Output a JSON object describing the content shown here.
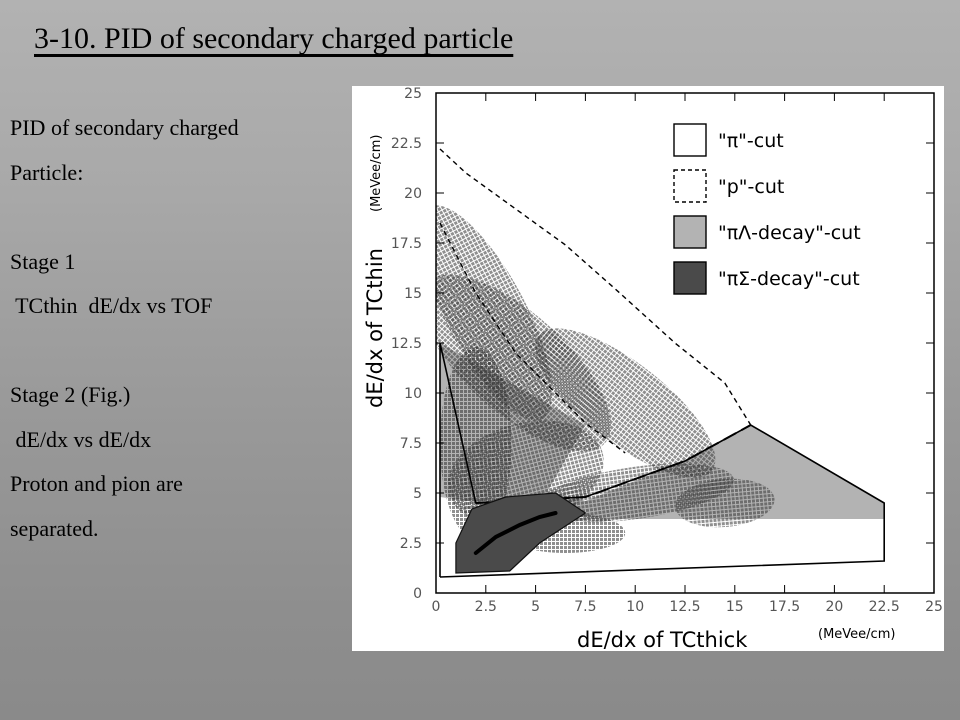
{
  "slide": {
    "title": "3-10.  PID of secondary charged particle",
    "lines": [
      "PID of secondary charged",
      "Particle:",
      "",
      "Stage 1",
      " TCthin  dE/dx vs TOF",
      "",
      "Stage 2 (Fig.)",
      " dE/dx vs dE/dx",
      "Proton and pion are",
      "separated."
    ]
  },
  "chart_data": {
    "type": "scatter",
    "xlabel": "dE/dx of TCthick",
    "ylabel": "dE/dx of TCthin",
    "x_unit": "(MeVee/cm)",
    "y_unit": "(MeVee/cm)",
    "xlim": [
      0,
      25
    ],
    "ylim": [
      0,
      25
    ],
    "x_ticks": [
      "0",
      "2.5",
      "5",
      "7.5",
      "10",
      "12.5",
      "15",
      "17.5",
      "20",
      "22.5",
      "25"
    ],
    "y_ticks": [
      "0",
      "2.5",
      "5",
      "7.5",
      "10",
      "12.5",
      "15",
      "17.5",
      "20",
      "22.5",
      "25"
    ],
    "legend": [
      {
        "label": "\"π\"-cut",
        "style": "solid-outline"
      },
      {
        "label": "\"p\"-cut",
        "style": "dashed-outline"
      },
      {
        "label": "\"πΛ-decay\"-cut",
        "style": "light-gray-fill"
      },
      {
        "label": "\"πΣ-decay\"-cut",
        "style": "dark-gray-fill"
      }
    ],
    "regions": {
      "pi_cut": [
        [
          0.2,
          0.8
        ],
        [
          22.5,
          1.6
        ],
        [
          22.5,
          4.5
        ],
        [
          15.8,
          8.4
        ],
        [
          12.5,
          6.6
        ],
        [
          7.5,
          4.8
        ],
        [
          2.0,
          4.5
        ],
        [
          0.2,
          12.5
        ],
        [
          0.2,
          0.8
        ]
      ],
      "p_cut_outer": [
        [
          0.2,
          22.2
        ],
        [
          1.5,
          21.0
        ],
        [
          4,
          19.2
        ],
        [
          6.5,
          17.4
        ],
        [
          9,
          15.2
        ],
        [
          12.0,
          12.5
        ],
        [
          14.5,
          10.5
        ],
        [
          15.8,
          8.4
        ]
      ],
      "p_cut_inner": [
        [
          0.2,
          18.5
        ],
        [
          2.0,
          15.0
        ],
        [
          4.0,
          12.0
        ],
        [
          7.5,
          8.5
        ],
        [
          9.5,
          7.0
        ]
      ],
      "pi_lambda_decay": [
        [
          0.2,
          12.5
        ],
        [
          7.5,
          8.4
        ],
        [
          5.6,
          5.1
        ],
        [
          7.5,
          4.6
        ],
        [
          12.5,
          6.6
        ],
        [
          15.8,
          8.4
        ],
        [
          22.5,
          4.5
        ],
        [
          22.5,
          3.7
        ],
        [
          8.0,
          3.7
        ],
        [
          0.2,
          4.8
        ]
      ],
      "pi_sigma_decay": [
        [
          1.0,
          1.0
        ],
        [
          3.7,
          1.1
        ],
        [
          5.2,
          2.5
        ],
        [
          7.5,
          4.0
        ],
        [
          6.0,
          5.0
        ],
        [
          3.5,
          4.8
        ],
        [
          1.8,
          4.2
        ],
        [
          1.0,
          2.5
        ]
      ],
      "pi_sigma_curve": [
        [
          2.0,
          2.0
        ],
        [
          3.0,
          2.8
        ],
        [
          4.2,
          3.4
        ],
        [
          5.2,
          3.8
        ],
        [
          6.0,
          4.0
        ]
      ]
    },
    "density_blobs": [
      {
        "cx": 2.5,
        "cy": 14.0,
        "rx": 2.0,
        "ry": 6.0,
        "angle": -28
      },
      {
        "cx": 4.0,
        "cy": 11.5,
        "rx": 2.5,
        "ry": 6.0,
        "angle": -48
      },
      {
        "cx": 9.5,
        "cy": 9.5,
        "rx": 2.0,
        "ry": 5.5,
        "angle": -52
      },
      {
        "cx": 2.0,
        "cy": 7.5,
        "rx": 1.8,
        "ry": 4.8,
        "angle": 0
      },
      {
        "cx": 4.5,
        "cy": 6.0,
        "rx": 4.0,
        "ry": 2.5,
        "angle": -15
      },
      {
        "cx": 10.0,
        "cy": 5.0,
        "rx": 5.0,
        "ry": 1.3,
        "angle": -8
      },
      {
        "cx": 14.5,
        "cy": 4.5,
        "rx": 2.5,
        "ry": 1.2,
        "angle": -5
      },
      {
        "cx": 6.5,
        "cy": 3.0,
        "rx": 3.0,
        "ry": 1.0,
        "angle": 0
      }
    ],
    "grid": false,
    "legend_position": "top-right"
  }
}
